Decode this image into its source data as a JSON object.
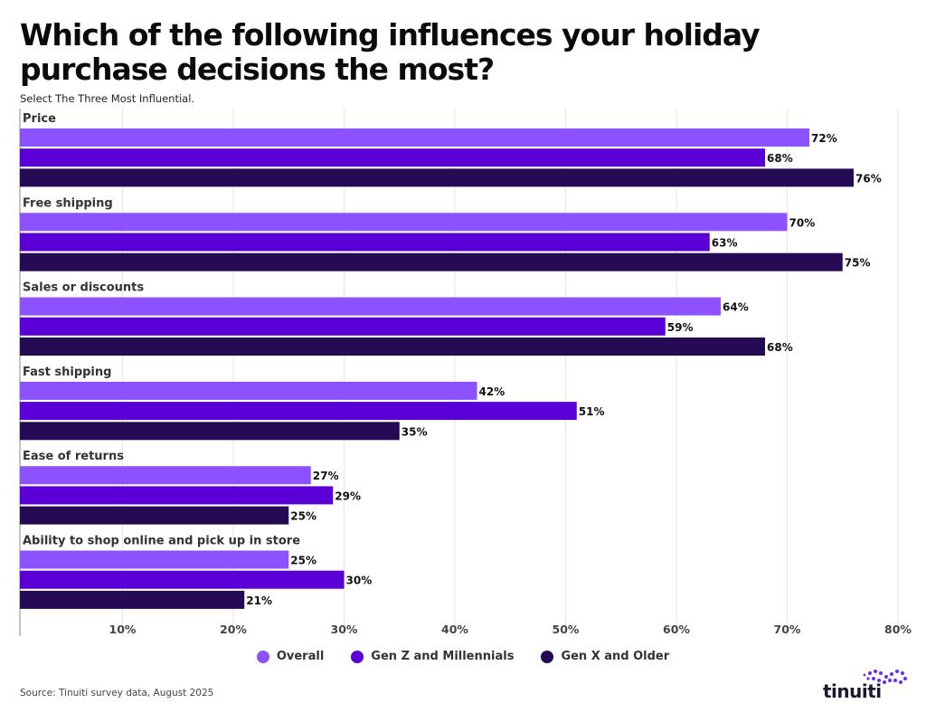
{
  "title": "Which of the following influences your holiday purchase decisions the most?",
  "subtitle": "Select The Three Most Influential.",
  "source": "Source: Tinuiti survey data, August 2025",
  "logo": {
    "text": "tinuiti",
    "accent": "#6a2ee8"
  },
  "chart_data": {
    "type": "bar",
    "orientation": "horizontal",
    "categories": [
      "Price",
      "Free shipping",
      "Sales or discounts",
      "Fast shipping",
      "Ease of returns",
      "Ability to shop online and pick up in store"
    ],
    "series": [
      {
        "name": "Overall",
        "color": "#8c52ff",
        "values": [
          72,
          70,
          64,
          42,
          27,
          25
        ]
      },
      {
        "name": "Gen Z and Millennials",
        "color": "#5a00d6",
        "values": [
          68,
          63,
          59,
          51,
          29,
          30
        ]
      },
      {
        "name": "Gen X and Older",
        "color": "#250a54",
        "values": [
          76,
          75,
          68,
          35,
          25,
          21
        ]
      }
    ],
    "value_suffix": "%",
    "xlim": [
      0,
      80
    ],
    "xticks": [
      "10%",
      "20%",
      "30%",
      "40%",
      "50%",
      "60%",
      "70%",
      "80%"
    ],
    "grid": true,
    "legend": "bottom-center"
  }
}
